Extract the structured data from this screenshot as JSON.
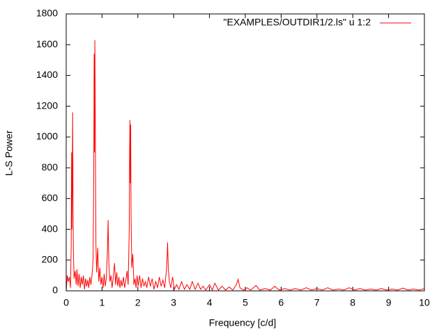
{
  "chart_data": {
    "type": "line",
    "xlabel": "Frequency [c/d]",
    "ylabel": "L-S Power",
    "xlim": [
      0,
      10
    ],
    "ylim": [
      0,
      1800
    ],
    "xticks": [
      0,
      1,
      2,
      3,
      4,
      5,
      6,
      7,
      8,
      9,
      10
    ],
    "yticks": [
      0,
      200,
      400,
      600,
      800,
      1000,
      1200,
      1400,
      1600,
      1800
    ],
    "legend": "top-right",
    "x": [
      0,
      0.03,
      0.06,
      0.09,
      0.12,
      0.14,
      0.15,
      0.16,
      0.17,
      0.18,
      0.19,
      0.2,
      0.22,
      0.25,
      0.28,
      0.3,
      0.33,
      0.36,
      0.39,
      0.42,
      0.45,
      0.48,
      0.51,
      0.54,
      0.57,
      0.6,
      0.63,
      0.66,
      0.69,
      0.72,
      0.75,
      0.77,
      0.78,
      0.79,
      0.8,
      0.81,
      0.82,
      0.83,
      0.85,
      0.88,
      0.91,
      0.94,
      0.97,
      1.0,
      1.03,
      1.06,
      1.09,
      1.12,
      1.15,
      1.17,
      1.19,
      1.22,
      1.25,
      1.28,
      1.31,
      1.35,
      1.38,
      1.41,
      1.44,
      1.47,
      1.5,
      1.53,
      1.56,
      1.6,
      1.63,
      1.66,
      1.7,
      1.73,
      1.76,
      1.77,
      1.78,
      1.79,
      1.8,
      1.81,
      1.83,
      1.86,
      1.89,
      1.92,
      1.95,
      1.98,
      2.01,
      2.05,
      2.09,
      2.13,
      2.17,
      2.21,
      2.25,
      2.3,
      2.35,
      2.4,
      2.45,
      2.5,
      2.55,
      2.6,
      2.65,
      2.7,
      2.75,
      2.8,
      2.82,
      2.83,
      2.85,
      2.88,
      2.92,
      2.97,
      3.02,
      3.08,
      3.15,
      3.22,
      3.3,
      3.37,
      3.45,
      3.52,
      3.6,
      3.68,
      3.75,
      3.82,
      3.9,
      4.0,
      4.08,
      4.15,
      4.25,
      4.35,
      4.45,
      4.55,
      4.65,
      4.75,
      4.8,
      4.85,
      4.95,
      5.05,
      5.15,
      5.3,
      5.4,
      5.55,
      5.7,
      5.82,
      5.95,
      6.1,
      6.25,
      6.4,
      6.55,
      6.7,
      6.85,
      7.0,
      7.15,
      7.3,
      7.45,
      7.6,
      7.75,
      7.9,
      8.05,
      8.2,
      8.35,
      8.5,
      8.65,
      8.8,
      8.95,
      9.1,
      9.25,
      9.4,
      9.55,
      9.7,
      9.85,
      10.0
    ],
    "series": [
      {
        "name": "\"EXAMPLES/OUTDIR1/2.ls\" u 1:2",
        "color": "#ff0000",
        "values": [
          0,
          100,
          60,
          90,
          20,
          300,
          900,
          400,
          700,
          1160,
          600,
          260,
          80,
          130,
          40,
          140,
          30,
          110,
          20,
          90,
          40,
          100,
          10,
          80,
          30,
          70,
          20,
          90,
          40,
          100,
          200,
          800,
          1540,
          900,
          1630,
          1200,
          750,
          300,
          120,
          280,
          60,
          150,
          40,
          90,
          20,
          110,
          30,
          80,
          250,
          460,
          180,
          60,
          100,
          20,
          80,
          180,
          40,
          120,
          30,
          90,
          20,
          70,
          30,
          90,
          20,
          60,
          130,
          40,
          400,
          900,
          1110,
          700,
          1080,
          500,
          150,
          240,
          40,
          80,
          20,
          100,
          30,
          100,
          20,
          80,
          30,
          60,
          20,
          90,
          30,
          80,
          10,
          60,
          20,
          90,
          30,
          70,
          20,
          140,
          240,
          315,
          150,
          60,
          20,
          90,
          10,
          40,
          10,
          60,
          10,
          40,
          10,
          60,
          10,
          50,
          10,
          30,
          5,
          40,
          5,
          50,
          5,
          30,
          5,
          25,
          5,
          40,
          75,
          20,
          5,
          20,
          5,
          35,
          5,
          15,
          5,
          30,
          5,
          15,
          5,
          15,
          5,
          20,
          5,
          15,
          5,
          20,
          5,
          12,
          5,
          20,
          5,
          15,
          5,
          12,
          5,
          15,
          5,
          12,
          5,
          18,
          5,
          12,
          5,
          15
        ]
      }
    ]
  }
}
